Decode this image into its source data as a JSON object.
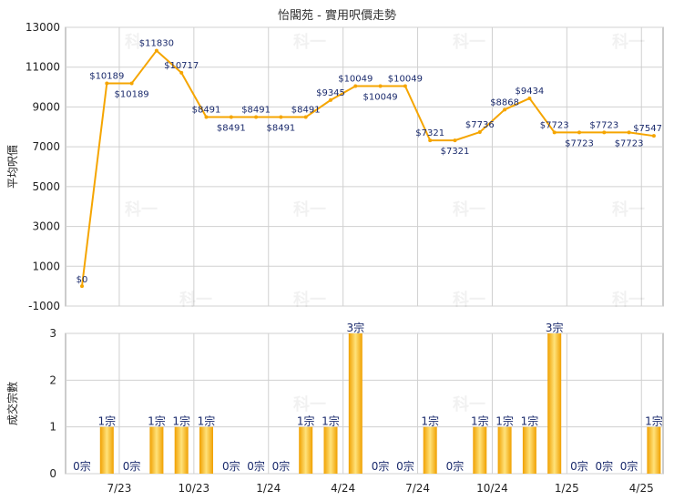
{
  "title": "怡閣苑 - 實用呎價走勢",
  "watermark": "科一",
  "colors": {
    "line": "#f5a500",
    "bar_light": "#ffe27a",
    "bar_dark": "#f0a000",
    "grid": "#d0d0d0",
    "label": "#1a2a6c"
  },
  "chart_data": [
    {
      "type": "line",
      "title": "怡閣苑 - 實用呎價走勢",
      "ylabel": "平均呎價",
      "ylim": [
        -1000,
        13000
      ],
      "yticks": [
        -1000,
        1000,
        3000,
        5000,
        7000,
        9000,
        11000,
        13000
      ],
      "grid": true,
      "series": [
        {
          "values": [
            0,
            10189,
            10189,
            11830,
            10717,
            8491,
            8491,
            8491,
            8491,
            8491,
            9345,
            10049,
            10049,
            10049,
            7321,
            7321,
            7736,
            8868,
            9434,
            7723,
            7723,
            7723,
            7723,
            7547
          ],
          "labels": [
            "$0",
            "$10189",
            "$10189",
            "$11830",
            "$10717",
            "$8491",
            "$8491",
            "$8491",
            "$8491",
            "$8491",
            "$9345",
            "$10049",
            "$10049",
            "$10049",
            "$7321",
            "$7321",
            "$7736",
            "$8868",
            "$9434",
            "$7723",
            "$7723",
            "$7723",
            "$7723",
            "$7547"
          ]
        }
      ]
    },
    {
      "type": "bar",
      "ylabel": "成交宗數",
      "ylim": [
        0,
        3
      ],
      "yticks": [
        0,
        1,
        2,
        3
      ],
      "grid": true,
      "xtick_labels": [
        "7/23",
        "10/23",
        "1/24",
        "4/24",
        "7/24",
        "10/24",
        "1/25",
        "4/25"
      ],
      "values": [
        0,
        1,
        0,
        1,
        1,
        1,
        0,
        0,
        0,
        1,
        1,
        3,
        0,
        0,
        1,
        0,
        1,
        1,
        1,
        3,
        0,
        0,
        0,
        1
      ],
      "labels": [
        "0宗",
        "1宗",
        "0宗",
        "1宗",
        "1宗",
        "1宗",
        "0宗",
        "0宗",
        "0宗",
        "1宗",
        "1宗",
        "3宗",
        "0宗",
        "0宗",
        "1宗",
        "0宗",
        "1宗",
        "1宗",
        "1宗",
        "3宗",
        "0宗",
        "0宗",
        "0宗",
        "1宗"
      ]
    }
  ]
}
